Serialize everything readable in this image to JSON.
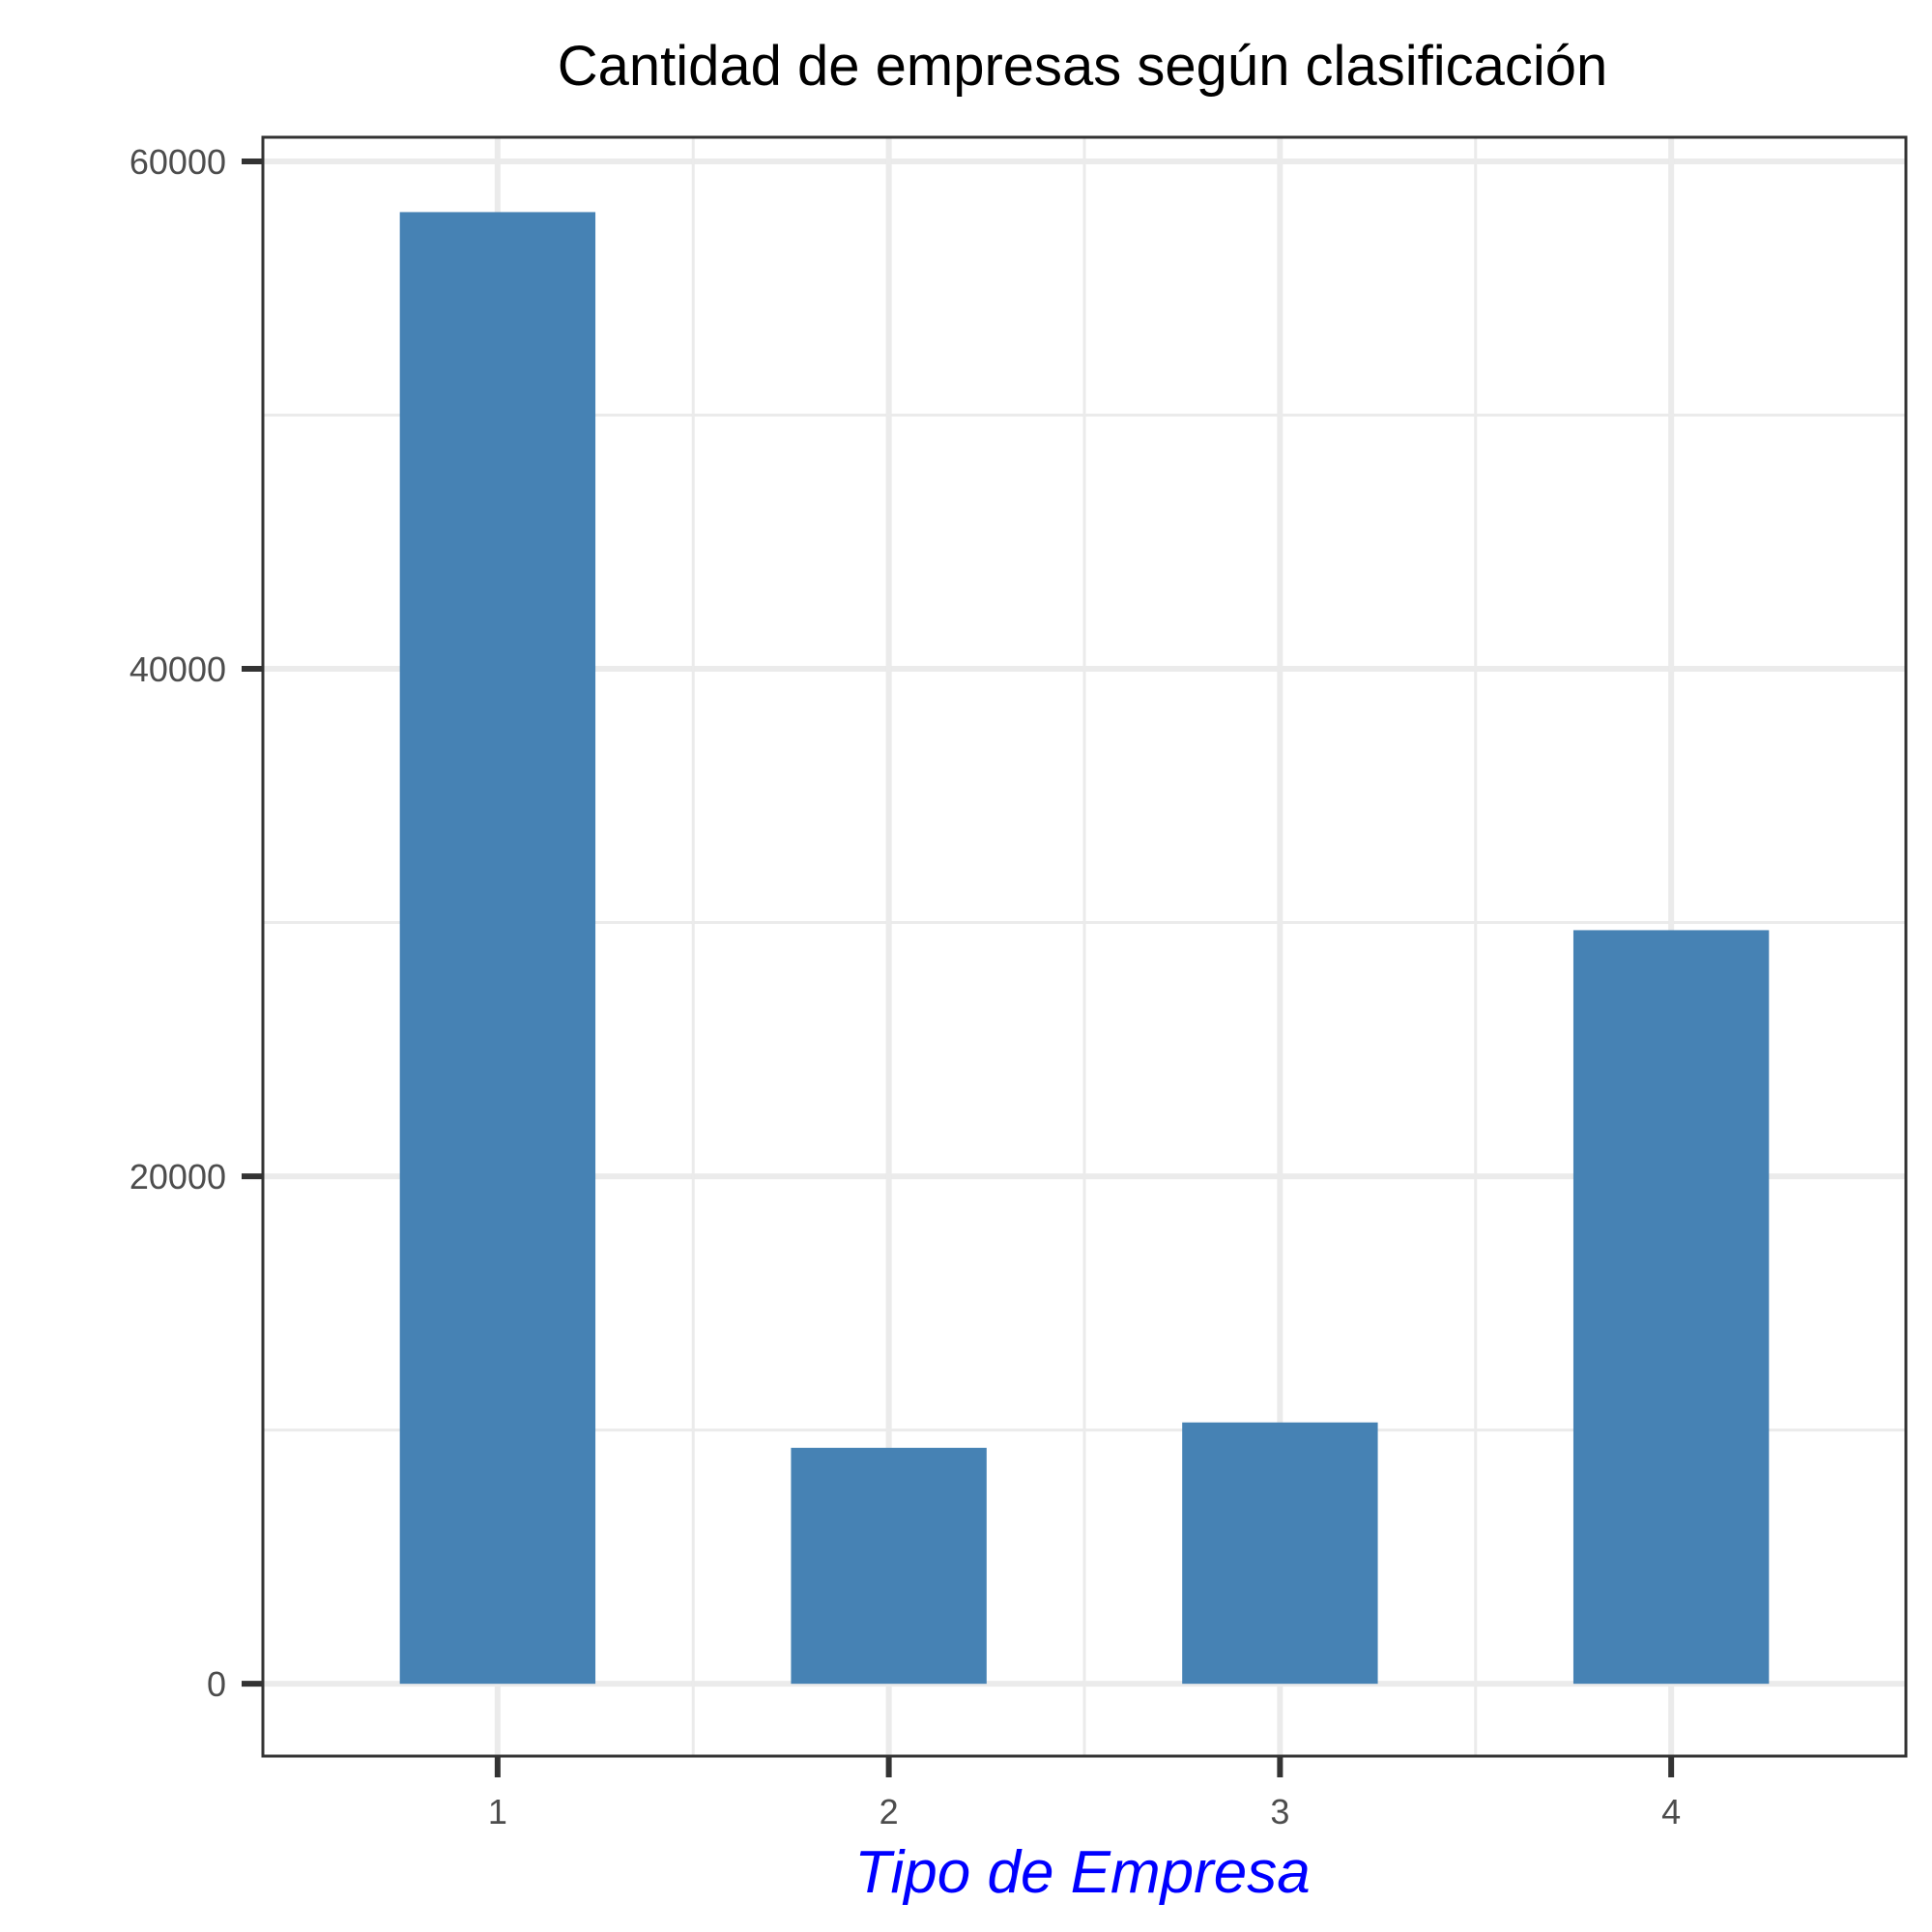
{
  "chart_data": {
    "type": "bar",
    "title": "Cantidad de empresas según clasificación",
    "xlabel": "Tipo de Empresa",
    "ylabel": "",
    "categories": [
      "1",
      "2",
      "3",
      "4"
    ],
    "values": [
      58000,
      9300,
      10300,
      29700
    ],
    "ylim": [
      -2850,
      60950
    ],
    "yticks": [
      0,
      20000,
      40000,
      60000
    ],
    "ytick_labels": [
      "0",
      "20000",
      "40000",
      "60000"
    ],
    "grid": true,
    "legend": "none",
    "colors": {
      "bar": "#4682b4",
      "xlabel": "#0000ff",
      "grid": "#ebebeb",
      "axis": "#333333"
    }
  }
}
